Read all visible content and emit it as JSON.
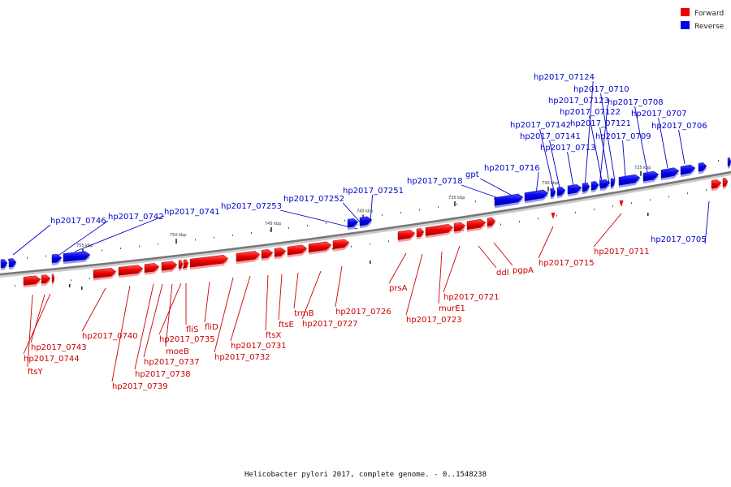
{
  "legend": {
    "forward": {
      "label": "Forward",
      "color": "#ee0000"
    },
    "reverse": {
      "label": "Reverse",
      "color": "#0000ee"
    }
  },
  "caption": "Helicobacter pylori 2017, complete genome. - 0..1548238",
  "ticks": [
    "755 kbp",
    "750 kbp",
    "745 kbp",
    "740 kbp",
    "735 kbp",
    "730 kbp",
    "725 kbp"
  ],
  "reverse_labels": [
    "hp2017_0746",
    "hp2017_0742",
    "hp2017_0741",
    "hp2017_07253",
    "hp2017_07252",
    "hp2017_07251",
    "hp2017_0718",
    "gpt",
    "hp2017_0716",
    "hp2017_07142",
    "hp2017_07141",
    "hp2017_0713",
    "hp2017_07124",
    "hp2017_07123",
    "hp2017_07122",
    "hp2017_07121",
    "hp2017_0710",
    "hp2017_0709",
    "hp2017_0708",
    "hp2017_0707",
    "hp2017_0706",
    "hp2017_0705"
  ],
  "forward_labels": [
    "hp2017_0743",
    "hp2017_0744",
    "ftsY",
    "hp2017_0740",
    "hp2017_0739",
    "hp2017_0738",
    "hp2017_0737",
    "moeB",
    "hp2017_0735",
    "fliS",
    "fliD",
    "hp2017_0732",
    "hp2017_0731",
    "ftsX",
    "ftsE",
    "trmB",
    "hp2017_0727",
    "hp2017_0726",
    "prsA",
    "hp2017_0723",
    "murE1",
    "hp2017_0721",
    "ddl",
    "pgpA",
    "hp2017_0715",
    "hp2017_0711"
  ]
}
